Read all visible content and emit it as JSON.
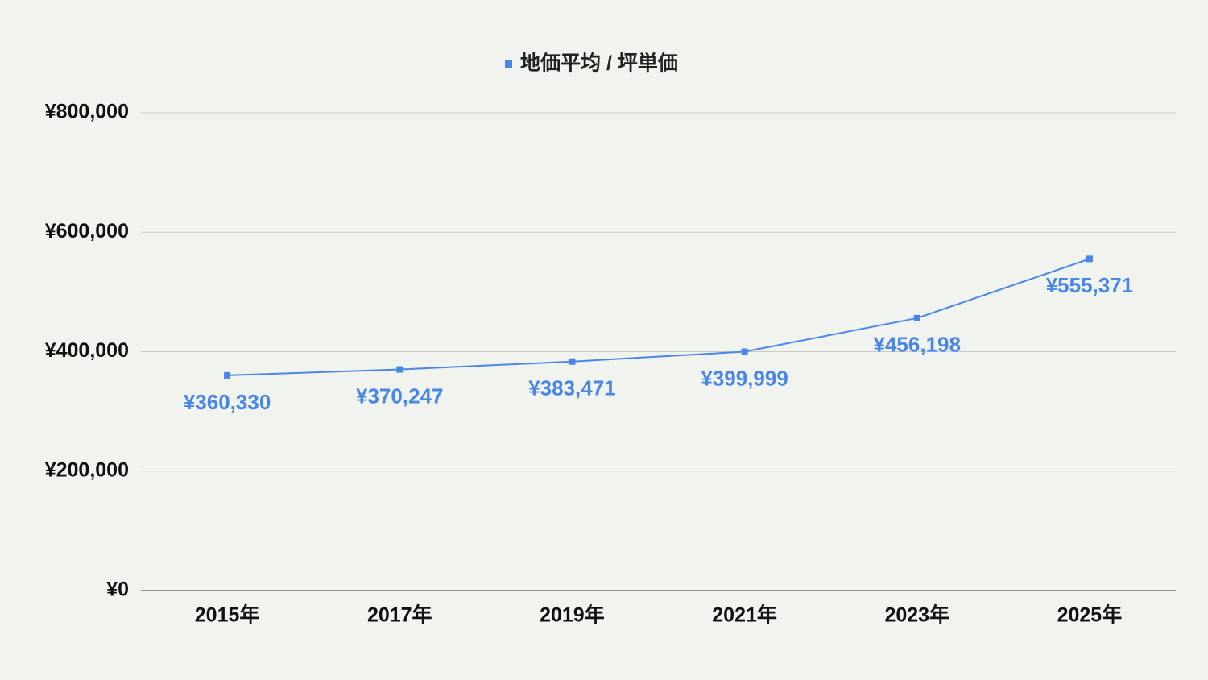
{
  "chart_data": {
    "type": "line",
    "categories": [
      "2015年",
      "2017年",
      "2019年",
      "2021年",
      "2023年",
      "2025年"
    ],
    "series": [
      {
        "name": "地価平均 / 坪単価",
        "color": "#4a86e8",
        "values": [
          360330,
          370247,
          383471,
          399999,
          456198,
          555371
        ],
        "value_labels": [
          "¥360,330",
          "¥370,247",
          "¥383,471",
          "¥399,999",
          "¥456,198",
          "¥555,371"
        ]
      }
    ],
    "ylim": [
      0,
      800000
    ],
    "yticks": [
      {
        "value": 0,
        "label": "¥0"
      },
      {
        "value": 200000,
        "label": "¥200,000"
      },
      {
        "value": 400000,
        "label": "¥400,000"
      },
      {
        "value": 600000,
        "label": "¥600,000"
      },
      {
        "value": 800000,
        "label": "¥800,000"
      }
    ],
    "grid": true,
    "legend": "top"
  }
}
